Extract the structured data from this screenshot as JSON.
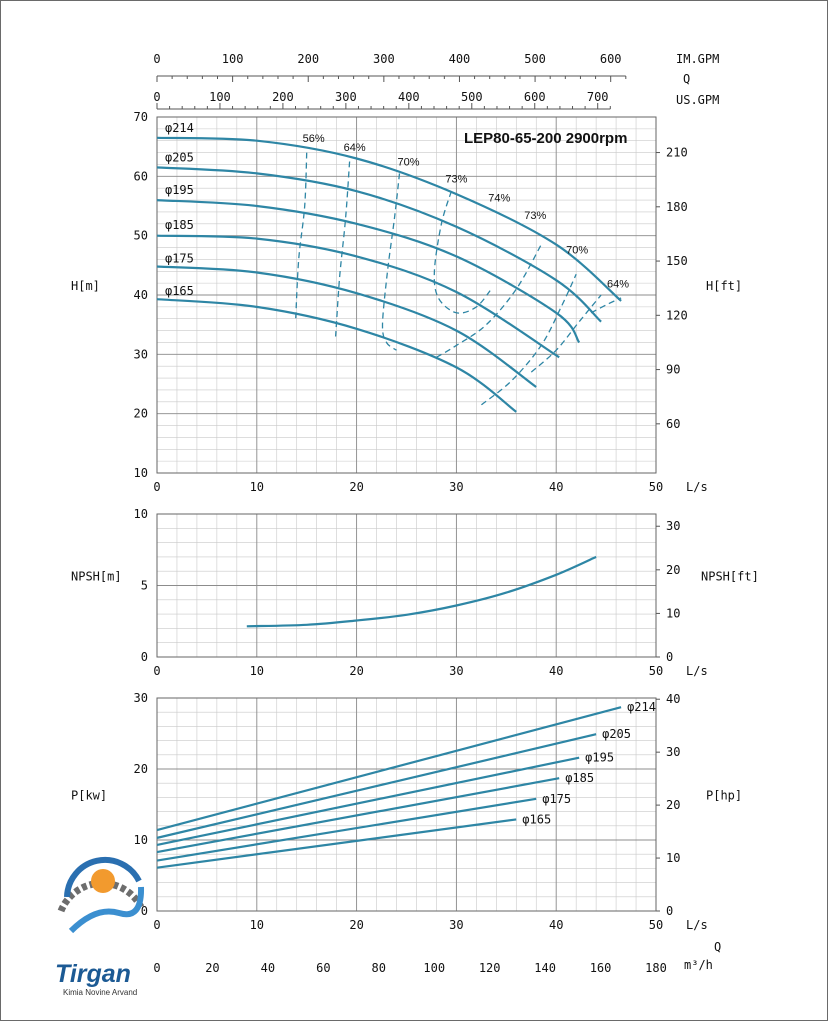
{
  "chart_data": [
    {
      "type": "line",
      "title": "LEP80-65-200 2900rpm",
      "xlabel": "L/s",
      "ylabel": "H[m]",
      "ylabel_right": "H[ft]",
      "xlim": [
        0,
        50
      ],
      "ylim": [
        10,
        70
      ],
      "x_ticks": [
        0,
        10,
        20,
        30,
        40,
        50
      ],
      "y_ticks": [
        10,
        20,
        30,
        40,
        50,
        60,
        70
      ],
      "y_right_ticks": [
        60,
        90,
        120,
        150,
        180,
        210
      ],
      "grid": true,
      "top_axes": [
        {
          "label": "IM.GPM",
          "ticks": [
            0,
            100,
            200,
            300,
            400,
            500,
            600
          ]
        },
        {
          "label": "US.GPM",
          "ticks": [
            0,
            100,
            200,
            300,
            400,
            500,
            600,
            700
          ]
        }
      ],
      "top_axis_caption": "Q",
      "series": [
        {
          "name": "φ214",
          "x": [
            0,
            10,
            20,
            30,
            40,
            46.5
          ],
          "y": [
            66.5,
            66,
            63,
            57,
            48.5,
            39
          ]
        },
        {
          "name": "φ205",
          "x": [
            0,
            10,
            20,
            30,
            40,
            44.5
          ],
          "y": [
            61.5,
            60.5,
            57.5,
            51.5,
            42.5,
            35.5
          ]
        },
        {
          "name": "φ195",
          "x": [
            0,
            10,
            20,
            30,
            40,
            42.3
          ],
          "y": [
            56,
            55,
            52,
            46.5,
            37,
            32
          ]
        },
        {
          "name": "φ185",
          "x": [
            0,
            10,
            20,
            30,
            40.3
          ],
          "y": [
            50,
            49.5,
            46.5,
            40.5,
            29.5
          ]
        },
        {
          "name": "φ175",
          "x": [
            0,
            10,
            20,
            30,
            38
          ],
          "y": [
            44.8,
            43.8,
            40.3,
            34,
            24.5
          ]
        },
        {
          "name": "φ165",
          "x": [
            0,
            10,
            20,
            30,
            36
          ],
          "y": [
            39.3,
            38,
            34.3,
            27.8,
            20.3
          ]
        }
      ],
      "efficiency_curves": [
        {
          "label": "56%",
          "x": [
            15,
            14.8,
            14.2,
            13.9
          ],
          "y": [
            64,
            55,
            46,
            36
          ]
        },
        {
          "label": "64%",
          "x": [
            19.3,
            18.9,
            18.3,
            17.9
          ],
          "y": [
            62.5,
            53,
            43,
            33
          ]
        },
        {
          "label": "70%",
          "x": [
            24.3,
            23.8,
            23.1,
            22.6,
            23,
            24
          ],
          "y": [
            60.5,
            53,
            44,
            35,
            32,
            30.7
          ]
        },
        {
          "label": "73%",
          "x": [
            29.5,
            28.5,
            27.8,
            28.2,
            30,
            32,
            33.5
          ],
          "y": [
            57.5,
            52,
            44,
            39.5,
            37,
            38,
            41
          ]
        },
        {
          "label": "74%",
          "x": [
            28,
            30,
            33,
            36,
            38.5
          ],
          "y": [
            29.5,
            31.5,
            35,
            41,
            48.5
          ]
        },
        {
          "label": "73%",
          "x": [
            32.5,
            35.5,
            38.5,
            40.5,
            42
          ],
          "y": [
            21.5,
            25.5,
            31.5,
            38,
            43.5
          ]
        },
        {
          "label": "70%",
          "x": [
            37.5,
            40,
            42.3,
            44.5
          ],
          "y": [
            27,
            30.7,
            35.5,
            40
          ]
        },
        {
          "label": "64%",
          "x": [
            43.5,
            45.2,
            46.5
          ],
          "y": [
            37,
            38.5,
            39.5
          ]
        }
      ],
      "efficiency_labels": [
        {
          "text": "56%",
          "x": 15.7,
          "y": 65.8
        },
        {
          "text": "64%",
          "x": 19.8,
          "y": 64.3
        },
        {
          "text": "70%",
          "x": 25.2,
          "y": 61.8
        },
        {
          "text": "73%",
          "x": 30,
          "y": 59
        },
        {
          "text": "74%",
          "x": 34.3,
          "y": 55.8
        },
        {
          "text": "73%",
          "x": 37.9,
          "y": 52.8
        },
        {
          "text": "70%",
          "x": 42.1,
          "y": 47
        },
        {
          "text": "64%",
          "x": 46.2,
          "y": 41.3
        }
      ],
      "curve_labels": [
        {
          "text": "φ214",
          "x": 0.8,
          "y": 67.5
        },
        {
          "text": "φ205",
          "x": 0.8,
          "y": 62.5
        },
        {
          "text": "φ195",
          "x": 0.8,
          "y": 57
        },
        {
          "text": "φ185",
          "x": 0.8,
          "y": 51.1
        },
        {
          "text": "φ175",
          "x": 0.8,
          "y": 45.5
        },
        {
          "text": "φ165",
          "x": 0.8,
          "y": 40
        }
      ]
    },
    {
      "type": "line",
      "xlabel": "L/s",
      "ylabel": "NPSH[m]",
      "ylabel_right": "NPSH[ft]",
      "xlim": [
        0,
        50
      ],
      "ylim": [
        0,
        10
      ],
      "x_ticks": [
        0,
        10,
        20,
        30,
        40,
        50
      ],
      "y_ticks": [
        0,
        5,
        10
      ],
      "y_right_ticks": [
        0,
        10,
        20,
        30
      ],
      "grid": true,
      "series": [
        {
          "x": [
            9,
            15,
            20,
            25,
            30,
            35,
            40,
            44
          ],
          "y": [
            2.15,
            2.25,
            2.55,
            2.95,
            3.6,
            4.5,
            5.75,
            7
          ]
        }
      ]
    },
    {
      "type": "line",
      "xlabel": "L/s",
      "ylabel": "P[kw]",
      "ylabel_right": "P[hp]",
      "xlim": [
        0,
        50
      ],
      "ylim": [
        0,
        30
      ],
      "x_ticks": [
        0,
        10,
        20,
        30,
        40,
        50
      ],
      "y_ticks": [
        0,
        10,
        20,
        30
      ],
      "y_right_ticks": [
        0,
        10,
        20,
        30,
        40
      ],
      "bottom_axis": {
        "label": "m³/h",
        "ticks": [
          0,
          20,
          40,
          60,
          80,
          100,
          120,
          140,
          160,
          180
        ]
      },
      "bottom_axis_caption": "Q",
      "grid": true,
      "series": [
        {
          "name": "φ214",
          "x": [
            0,
            46.5
          ],
          "y": [
            11.4,
            28.7
          ]
        },
        {
          "name": "φ205",
          "x": [
            0,
            44
          ],
          "y": [
            10.3,
            24.9
          ]
        },
        {
          "name": "φ195",
          "x": [
            0,
            42.3
          ],
          "y": [
            9.3,
            21.6
          ]
        },
        {
          "name": "φ185",
          "x": [
            0,
            40.3
          ],
          "y": [
            8.3,
            18.7
          ]
        },
        {
          "name": "φ175",
          "x": [
            0,
            38
          ],
          "y": [
            7.1,
            15.8
          ]
        },
        {
          "name": "φ165",
          "x": [
            0,
            36
          ],
          "y": [
            6.1,
            12.9
          ]
        }
      ]
    }
  ],
  "logo": {
    "title": "Tirgan",
    "subtitle": "Kimia Novine Arvand"
  }
}
